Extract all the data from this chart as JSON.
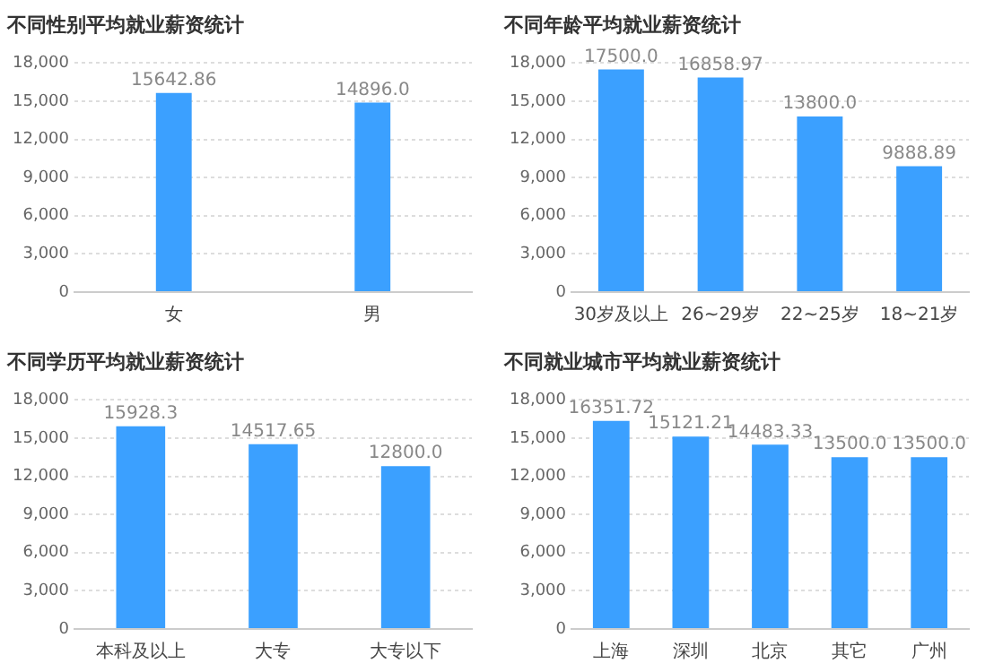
{
  "chart_data": [
    {
      "type": "bar",
      "title": "不同性别平均就业薪资统计",
      "categories": [
        "女",
        "男"
      ],
      "values": [
        15642.86,
        14896.0
      ],
      "value_labels": [
        "15642.86",
        "14896.0"
      ],
      "color": "#3ba0ff",
      "ylim": [
        0,
        18000
      ],
      "yticks": [
        {
          "value": 0,
          "label": "0"
        },
        {
          "value": 3000,
          "label": "3,000"
        },
        {
          "value": 6000,
          "label": "6,000"
        },
        {
          "value": 9000,
          "label": "9,000"
        },
        {
          "value": 12000,
          "label": "12,000"
        },
        {
          "value": 15000,
          "label": "15,000"
        },
        {
          "value": 18000,
          "label": "18,000"
        }
      ],
      "grid": "y"
    },
    {
      "type": "bar",
      "title": "不同年龄平均就业薪资统计",
      "categories": [
        "30岁及以上",
        "26~29岁",
        "22~25岁",
        "18~21岁"
      ],
      "values": [
        17500.0,
        16858.97,
        13800.0,
        9888.89
      ],
      "value_labels": [
        "17500.0",
        "16858.97",
        "13800.0",
        "9888.89"
      ],
      "color": "#3ba0ff",
      "ylim": [
        0,
        18000
      ],
      "yticks": [
        {
          "value": 0,
          "label": "0"
        },
        {
          "value": 3000,
          "label": "3,000"
        },
        {
          "value": 6000,
          "label": "6,000"
        },
        {
          "value": 9000,
          "label": "9,000"
        },
        {
          "value": 12000,
          "label": "12,000"
        },
        {
          "value": 15000,
          "label": "15,000"
        },
        {
          "value": 18000,
          "label": "18,000"
        }
      ],
      "grid": "y"
    },
    {
      "type": "bar",
      "title": "不同学历平均就业薪资统计",
      "categories": [
        "本科及以上",
        "大专",
        "大专以下"
      ],
      "values": [
        15928.3,
        14517.65,
        12800.0
      ],
      "value_labels": [
        "15928.3",
        "14517.65",
        "12800.0"
      ],
      "color": "#3ba0ff",
      "ylim": [
        0,
        18000
      ],
      "yticks": [
        {
          "value": 0,
          "label": "0"
        },
        {
          "value": 3000,
          "label": "3,000"
        },
        {
          "value": 6000,
          "label": "6,000"
        },
        {
          "value": 9000,
          "label": "9,000"
        },
        {
          "value": 12000,
          "label": "12,000"
        },
        {
          "value": 15000,
          "label": "15,000"
        },
        {
          "value": 18000,
          "label": "18,000"
        }
      ],
      "grid": "y"
    },
    {
      "type": "bar",
      "title": "不同就业城市平均就业薪资统计",
      "categories": [
        "上海",
        "深圳",
        "北京",
        "其它",
        "广州"
      ],
      "values": [
        16351.72,
        15121.21,
        14483.33,
        13500.0,
        13500.0
      ],
      "value_labels": [
        "16351.72",
        "15121.21",
        "14483.33",
        "13500.0",
        "13500.0"
      ],
      "color": "#3ba0ff",
      "ylim": [
        0,
        18000
      ],
      "yticks": [
        {
          "value": 0,
          "label": "0"
        },
        {
          "value": 3000,
          "label": "3,000"
        },
        {
          "value": 6000,
          "label": "6,000"
        },
        {
          "value": 9000,
          "label": "9,000"
        },
        {
          "value": 12000,
          "label": "12,000"
        },
        {
          "value": 15000,
          "label": "15,000"
        },
        {
          "value": 18000,
          "label": "18,000"
        }
      ],
      "grid": "y"
    }
  ]
}
